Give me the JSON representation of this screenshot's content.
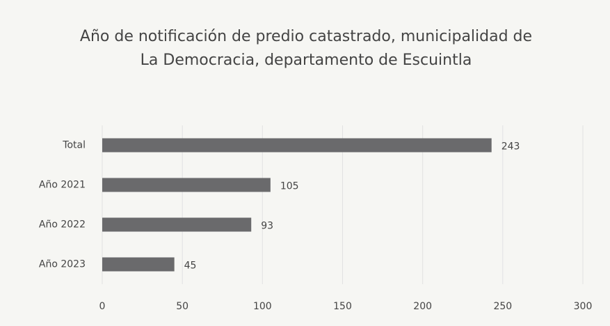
{
  "chart_data": {
    "type": "bar",
    "orientation": "horizontal",
    "title": "Año de notificación de predio catastrado, municipalidad de La Democracia, departamento de Escuintla",
    "categories": [
      "Total",
      "Año 2021",
      "Año 2022",
      "Año 2023"
    ],
    "values": [
      243,
      105,
      93,
      45
    ],
    "color": "#6a6a6c",
    "xlim": [
      0,
      300
    ],
    "xticks": [
      0,
      50,
      100,
      150,
      200,
      250,
      300
    ],
    "grid": true
  }
}
